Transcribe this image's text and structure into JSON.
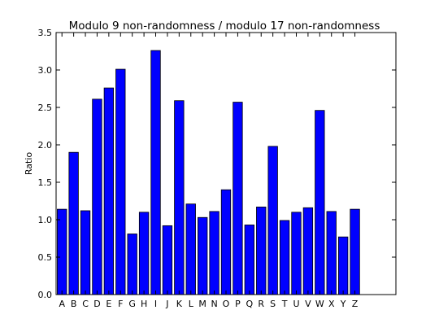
{
  "chart_data": {
    "type": "bar",
    "title": "Modulo 9 non-randomness / modulo 17 non-randomness",
    "xlabel": "",
    "ylabel": "Ratio",
    "categories": [
      "A",
      "B",
      "C",
      "D",
      "E",
      "F",
      "G",
      "H",
      "I",
      "J",
      "K",
      "L",
      "M",
      "N",
      "O",
      "P",
      "Q",
      "R",
      "S",
      "T",
      "U",
      "V",
      "W",
      "X",
      "Y",
      "Z"
    ],
    "values": [
      1.14,
      1.9,
      1.12,
      2.61,
      2.76,
      3.01,
      0.81,
      1.1,
      3.26,
      0.92,
      2.59,
      1.21,
      1.03,
      1.11,
      1.4,
      2.57,
      0.93,
      1.17,
      1.98,
      0.99,
      1.1,
      1.16,
      2.46,
      1.11,
      0.77,
      1.14
    ],
    "xlim": [
      -0.5,
      28.5
    ],
    "ylim": [
      0,
      3.5
    ],
    "yticks": [
      0.0,
      0.5,
      1.0,
      1.5,
      2.0,
      2.5,
      3.0,
      3.5
    ],
    "ytick_labels": [
      "0.0",
      "0.5",
      "1.0",
      "1.5",
      "2.0",
      "2.5",
      "3.0",
      "3.5"
    ],
    "grid": false,
    "legend": "none",
    "bar_color": "#0000ff",
    "bar_edge_color": "#000000"
  }
}
